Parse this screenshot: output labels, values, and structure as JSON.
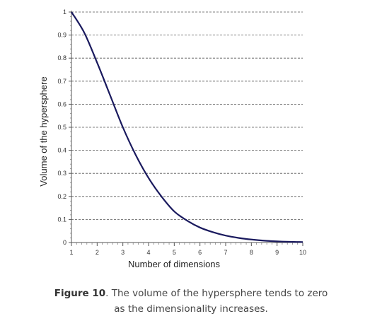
{
  "chart_data": {
    "type": "line",
    "xlabel": "Number of dimensions",
    "ylabel": "Volume of the hypersphere",
    "xlim": [
      1,
      10
    ],
    "ylim": [
      0,
      1
    ],
    "x_ticks": [
      1,
      2,
      3,
      4,
      5,
      6,
      7,
      8,
      9,
      10
    ],
    "y_ticks": [
      0,
      0.1,
      0.2,
      0.3,
      0.4,
      0.5,
      0.6,
      0.7,
      0.8,
      0.9,
      1
    ],
    "y_tick_labels": [
      "0",
      "0.1",
      "0.2",
      "0.3",
      "0.4",
      "0.5",
      "0.6",
      "0.7",
      "0.8",
      "0.9",
      "1"
    ],
    "grid": "horizontal-dashed",
    "series": [
      {
        "color": "#1a1a5e",
        "x": [
          1,
          1.5,
          2,
          2.5,
          3,
          3.5,
          4,
          4.5,
          5,
          5.5,
          6,
          6.5,
          7,
          7.5,
          8,
          8.5,
          9,
          9.5,
          10
        ],
        "y": [
          1.0,
          0.91,
          0.78,
          0.64,
          0.5,
          0.38,
          0.28,
          0.2,
          0.135,
          0.095,
          0.065,
          0.045,
          0.03,
          0.02,
          0.013,
          0.008,
          0.005,
          0.003,
          0.002
        ]
      }
    ]
  },
  "caption": {
    "label": "Figure 10",
    "text_line1": ". The volume of the hypersphere tends to zero",
    "text_line2": "as the dimensionality increases."
  }
}
